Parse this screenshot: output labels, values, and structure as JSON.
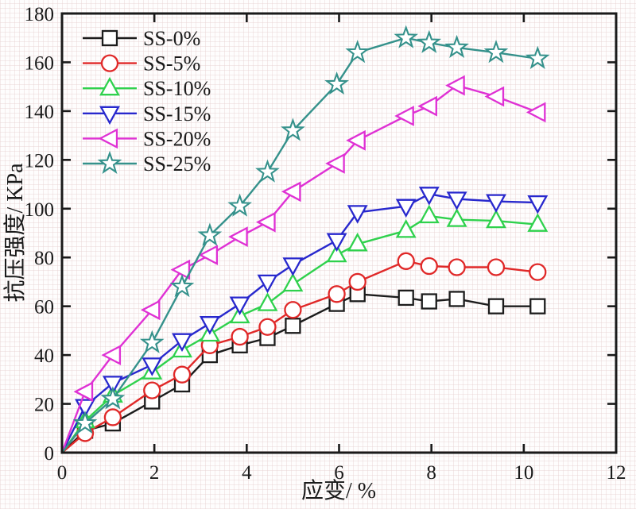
{
  "figure": {
    "background": "#fefdfd",
    "frame_color": "#1a1a1a",
    "text_color": "#1a1a1a"
  },
  "chart_data": {
    "type": "line",
    "title": "",
    "xlabel": "应变/ %",
    "ylabel": "抗压强度/ KPa",
    "xlim": [
      0,
      12
    ],
    "ylim": [
      0,
      180
    ],
    "xticks": [
      0,
      2,
      4,
      6,
      8,
      10,
      12
    ],
    "yticks": [
      0,
      20,
      40,
      60,
      80,
      100,
      120,
      140,
      160,
      180
    ],
    "grid": "fine light graph-paper mesh over entire figure",
    "legend_position": "upper-left inside plot, no border",
    "x": [
      0,
      0.5,
      1.1,
      1.95,
      2.6,
      3.2,
      3.85,
      4.45,
      5.0,
      5.95,
      6.4,
      7.45,
      7.95,
      8.55,
      9.4,
      10.3
    ],
    "series": [
      {
        "name": "SS-0%",
        "color": "#1c1c1c",
        "marker": "square",
        "values": [
          0,
          9,
          12,
          21,
          28,
          40,
          44,
          47,
          52,
          61,
          65,
          63.5,
          62,
          63,
          60,
          60
        ]
      },
      {
        "name": "SS-5%",
        "color": "#e02828",
        "marker": "circle",
        "values": [
          0,
          8,
          14.5,
          25.5,
          32,
          44,
          47.5,
          51.5,
          58.5,
          65,
          70,
          78.5,
          76.5,
          76,
          76,
          74
        ]
      },
      {
        "name": "SS-10%",
        "color": "#2fd14d",
        "marker": "triangle-up",
        "values": [
          0,
          13,
          23.5,
          33,
          42,
          48.5,
          56,
          61,
          69,
          81,
          85.5,
          91,
          97,
          95.5,
          95,
          93.5
        ]
      },
      {
        "name": "SS-15%",
        "color": "#2828cd",
        "marker": "triangle-down",
        "values": [
          0,
          19,
          28.5,
          36,
          46,
          53,
          61,
          70,
          77,
          87,
          98.5,
          101,
          106,
          104,
          103,
          102.5
        ]
      },
      {
        "name": "SS-20%",
        "color": "#df31d4",
        "marker": "triangle-left",
        "values": [
          0,
          25,
          40,
          58.5,
          75,
          81,
          88.5,
          94.5,
          107,
          118.5,
          128,
          138,
          142,
          150.5,
          146,
          139.5
        ]
      },
      {
        "name": "SS-25%",
        "color": "#35918b",
        "marker": "star",
        "values": [
          0,
          12,
          22,
          45,
          68,
          89,
          101,
          115,
          132,
          151,
          164,
          170,
          168,
          166,
          164,
          161.5
        ]
      }
    ]
  }
}
